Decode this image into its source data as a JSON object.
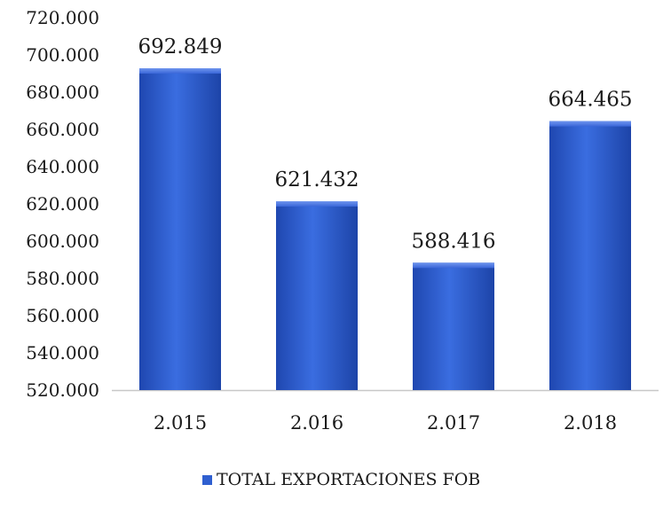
{
  "chart_data": {
    "type": "bar",
    "categories": [
      "2.015",
      "2.016",
      "2.017",
      "2.018"
    ],
    "series": [
      {
        "name": "TOTAL EXPORTACIONES FOB",
        "values": [
          692849,
          621432,
          588416,
          664465
        ],
        "data_labels": [
          "692.849",
          "621.432",
          "588.416",
          "664.465"
        ],
        "color": "#2f5fd0"
      }
    ],
    "ylim": [
      520000,
      720000
    ],
    "yticks": [
      520000,
      540000,
      560000,
      580000,
      600000,
      620000,
      640000,
      660000,
      680000,
      700000,
      720000
    ],
    "ytick_labels": [
      "520.000",
      "540.000",
      "560.000",
      "580.000",
      "600.000",
      "620.000",
      "640.000",
      "660.000",
      "680.000",
      "700.000",
      "720.000"
    ],
    "grid": false,
    "legend_position": "bottom"
  }
}
